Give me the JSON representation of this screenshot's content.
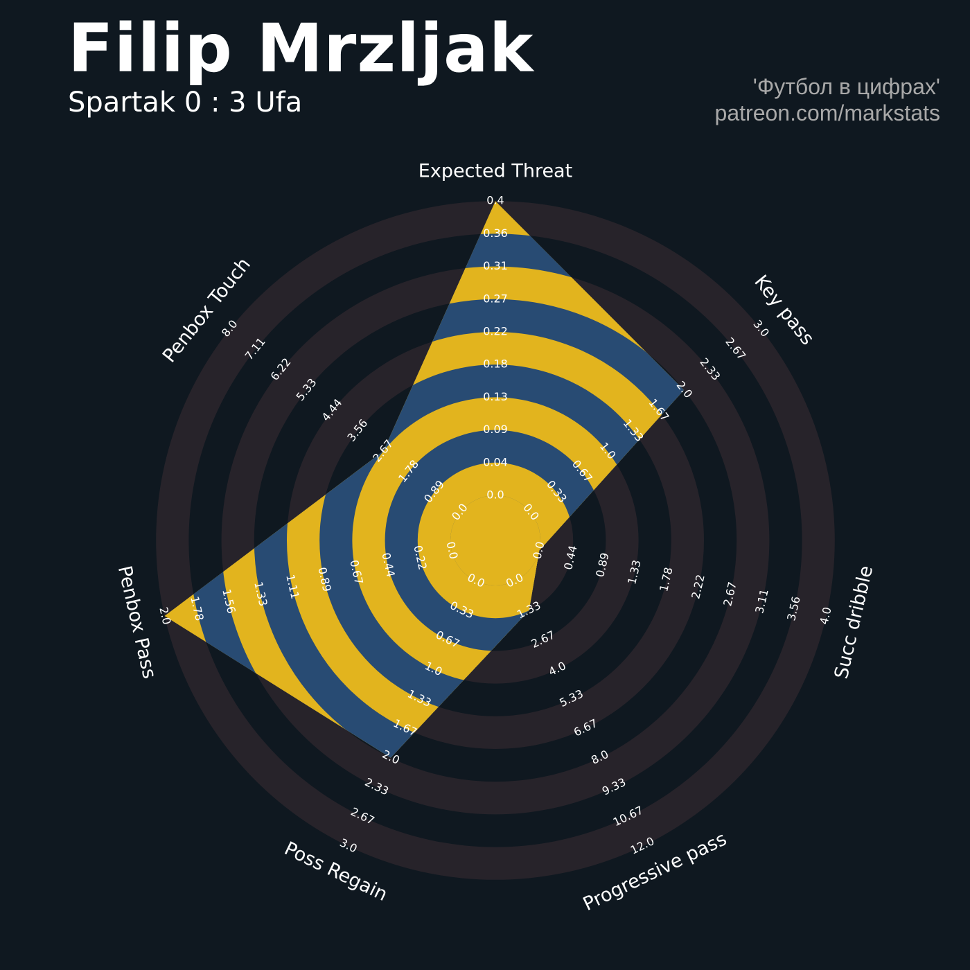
{
  "header": {
    "player": "Filip Mrzljak",
    "match": "Spartak 0 : 3 Ufa",
    "credit_line1": "'Футбол в цифрах'",
    "credit_line2": "patreon.com/markstats"
  },
  "colors": {
    "background": "#0f1820",
    "ring_band": "#27232a",
    "polygon_blue": "#284b73",
    "polygon_yellow": "#e2b41e",
    "label_text": "#ffffff",
    "credit_text": "#a9a9a9"
  },
  "chart_data": {
    "type": "radar",
    "grid": "concentric bands",
    "axes": [
      {
        "name": "Expected Threat",
        "min": 0.0,
        "max": 0.4,
        "value": 0.4,
        "ticks": [
          "0.0",
          "0.04",
          "0.09",
          "0.13",
          "0.18",
          "0.22",
          "0.27",
          "0.31",
          "0.36",
          "0.4"
        ]
      },
      {
        "name": "Key pass",
        "min": 0.0,
        "max": 3.0,
        "value": 2.0,
        "ticks": [
          "0.0",
          "0.33",
          "0.67",
          "1.0",
          "1.33",
          "1.67",
          "2.0",
          "2.33",
          "2.67",
          "3.0"
        ]
      },
      {
        "name": "Succ dribble",
        "min": 0.0,
        "max": 4.0,
        "value": 0.0,
        "ticks": [
          "0.0",
          "0.44",
          "0.89",
          "1.33",
          "1.78",
          "2.22",
          "2.67",
          "3.11",
          "3.56",
          "4.0"
        ]
      },
      {
        "name": "Progressive pass",
        "min": 0.0,
        "max": 12.0,
        "value": 1.33,
        "ticks": [
          "0.0",
          "1.33",
          "2.67",
          "4.0",
          "5.33",
          "6.67",
          "8.0",
          "9.33",
          "10.67",
          "12.0"
        ]
      },
      {
        "name": "Poss Regain",
        "min": 0.0,
        "max": 3.0,
        "value": 2.0,
        "ticks": [
          "0.0",
          "0.33",
          "0.67",
          "1.0",
          "1.33",
          "1.67",
          "2.0",
          "2.33",
          "2.67",
          "3.0"
        ]
      },
      {
        "name": "Penbox Pass",
        "min": 0.0,
        "max": 2.0,
        "value": 2.0,
        "ticks": [
          "0.0",
          "0.22",
          "0.44",
          "0.67",
          "0.89",
          "1.11",
          "1.33",
          "1.56",
          "1.78",
          "2.0"
        ]
      },
      {
        "name": "Penbox Touch",
        "min": 0.0,
        "max": 8.0,
        "value": 2.67,
        "ticks": [
          "0.0",
          "0.89",
          "1.78",
          "2.67",
          "3.56",
          "4.44",
          "5.33",
          "6.22",
          "7.11",
          "8.0"
        ]
      }
    ]
  }
}
